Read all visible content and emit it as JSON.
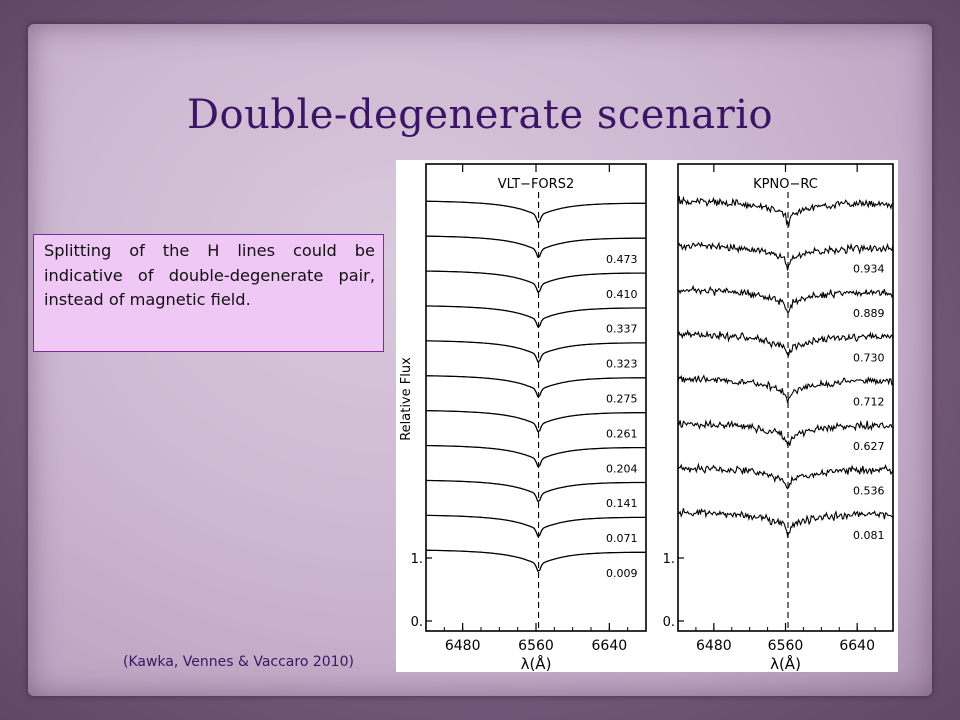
{
  "slide": {
    "title": "Double-degenerate scenario",
    "note": "Splitting of the H lines could be indicative of double-degenerate pair, instead of magnetic field.",
    "citation": "(Kawka, Vennes & Vaccaro 2010)"
  },
  "colors": {
    "title": "#3b1466",
    "note_background": "#f0c8f6",
    "note_border": "#7a2aa0",
    "parchment": "#cdb8d1",
    "frame": "#7b6082"
  },
  "chart_data": [
    {
      "type": "line",
      "title": "VLT−FORS2",
      "xlabel": "λ(Å)",
      "ylabel": "Relative Flux",
      "xlim": [
        6440,
        6680
      ],
      "xticks": [
        6480,
        6560,
        6640
      ],
      "xtick_labels": [
        "6480",
        "6560",
        "6640"
      ],
      "yticks": [
        0,
        1
      ],
      "ytick_labels": [
        "0.",
        "1."
      ],
      "line_center": 6562.8,
      "dashed_marker_at": 6562.8,
      "noise": "low",
      "spectra_labels": [
        "",
        "0.473",
        "0.410",
        "0.337",
        "0.323",
        "0.275",
        "0.261",
        "0.204",
        "0.141",
        "0.071",
        "0.009"
      ]
    },
    {
      "type": "line",
      "title": "KPNO−RC",
      "xlabel": "λ(Å)",
      "ylabel": "",
      "xlim": [
        6440,
        6680
      ],
      "xticks": [
        6480,
        6560,
        6640
      ],
      "xtick_labels": [
        "6480",
        "6560",
        "6640"
      ],
      "yticks": [
        0,
        1
      ],
      "ytick_labels": [
        "0.",
        "1."
      ],
      "line_center": 6562.8,
      "dashed_marker_at": 6562.8,
      "noise": "high",
      "spectra_labels": [
        "",
        "0.934",
        "0.889",
        "0.730",
        "0.712",
        "0.627",
        "0.536",
        "0.081"
      ]
    }
  ]
}
